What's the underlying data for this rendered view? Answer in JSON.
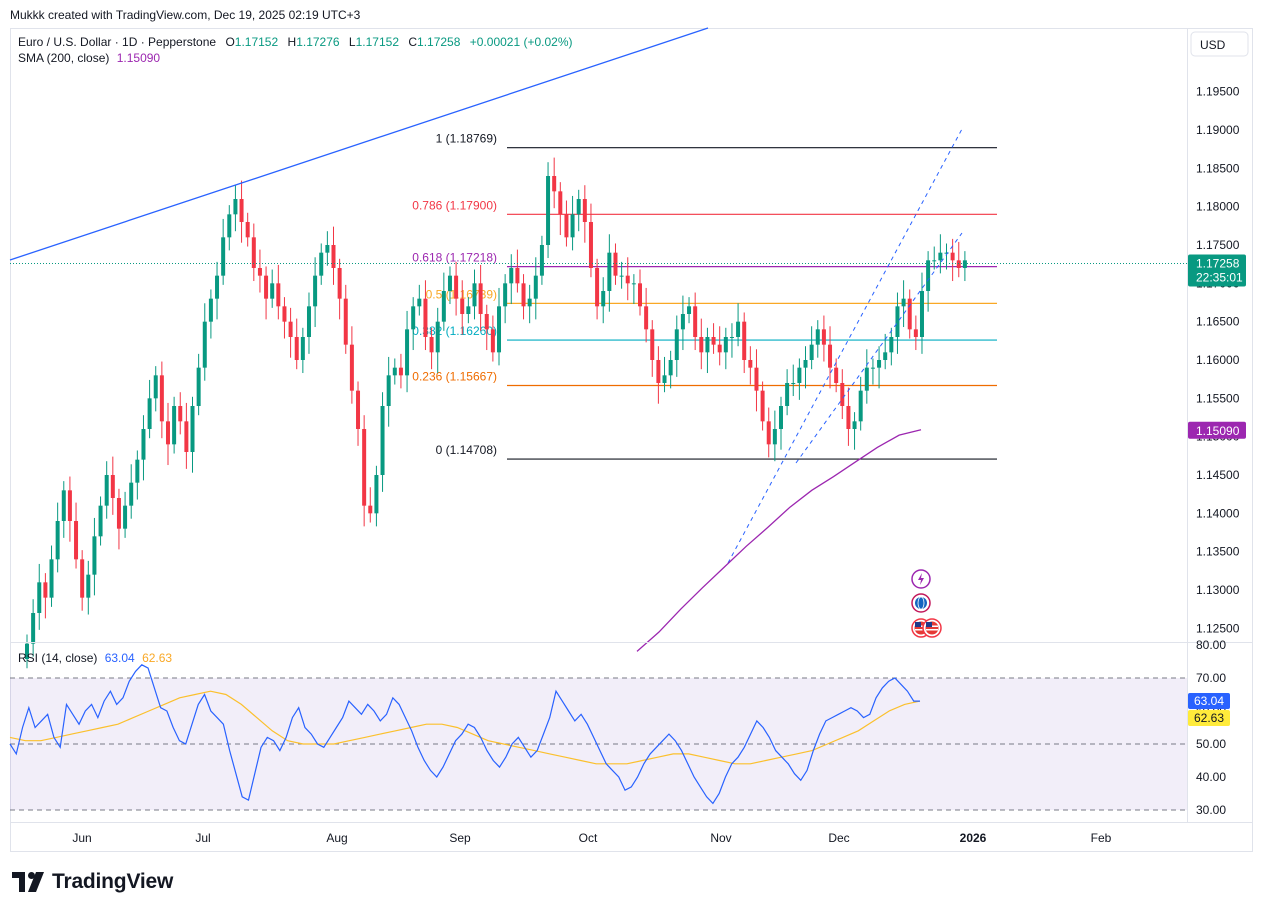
{
  "attribution": "Mukkk created with TradingView.com, Dec 19, 2025 02:19 UTC+3",
  "brand": {
    "name": "TradingView",
    "icon": "tradingview-logo-icon"
  },
  "legend": {
    "symbol": "Euro / U.S. Dollar · 1D · Pepperstone",
    "o_label": "O",
    "o_value": "1.17152",
    "h_label": "H",
    "h_value": "1.17276",
    "l_label": "L",
    "l_value": "1.17152",
    "c_label": "C",
    "c_value": "1.17258",
    "change": "+0.00021 (+0.02%)",
    "sma_label": "SMA (200, close)",
    "sma_value": "1.15090",
    "rsi_label": "RSI (14, close)",
    "rsi_value": "63.04",
    "rsi_ma_value": "62.63"
  },
  "currency_button": "USD",
  "colors": {
    "up": "#089981",
    "down": "#f23645",
    "sma": "#9c27b0",
    "trend": "#2962ff",
    "rsi": "#2962ff",
    "rsi_ma": "#fbc02d",
    "rsi_band": "#7e57c2"
  },
  "chart_data": [
    {
      "type": "candlestick",
      "title": "Euro / U.S. Dollar · 1D · Pepperstone",
      "x_labels": [
        "Jun",
        "Jul",
        "Aug",
        "Sep",
        "Oct",
        "Nov",
        "Dec",
        "2026",
        "Feb"
      ],
      "y_ticks": [
        "1.19500",
        "1.19000",
        "1.18500",
        "1.18000",
        "1.17500",
        "1.17000",
        "1.16500",
        "1.16000",
        "1.15500",
        "1.15000",
        "1.14500",
        "1.14000",
        "1.13500",
        "1.13000",
        "1.12500"
      ],
      "ylim": [
        1.1225,
        1.1985
      ],
      "price_now": "1.17258",
      "countdown": "22:35:01",
      "sma_now": "1.15090",
      "candles_close": [
        1.123,
        1.127,
        1.131,
        1.129,
        1.134,
        1.139,
        1.143,
        1.139,
        1.134,
        1.129,
        1.132,
        1.137,
        1.141,
        1.145,
        1.142,
        1.138,
        1.141,
        1.144,
        1.147,
        1.151,
        1.155,
        1.158,
        1.152,
        1.149,
        1.154,
        1.152,
        1.148,
        1.154,
        1.159,
        1.165,
        1.168,
        1.171,
        1.176,
        1.179,
        1.181,
        1.178,
        1.176,
        1.172,
        1.171,
        1.168,
        1.17,
        1.167,
        1.165,
        1.163,
        1.16,
        1.163,
        1.167,
        1.171,
        1.174,
        1.175,
        1.172,
        1.168,
        1.162,
        1.156,
        1.151,
        1.141,
        1.14,
        1.145,
        1.154,
        1.158,
        1.159,
        1.158,
        1.164,
        1.167,
        1.168,
        1.163,
        1.161,
        1.165,
        1.169,
        1.171,
        1.168,
        1.166,
        1.167,
        1.17,
        1.166,
        1.164,
        1.161,
        1.167,
        1.17,
        1.172,
        1.17,
        1.167,
        1.168,
        1.171,
        1.175,
        1.184,
        1.182,
        1.179,
        1.176,
        1.179,
        1.181,
        1.178,
        1.172,
        1.167,
        1.169,
        1.174,
        1.171,
        1.171,
        1.17,
        1.17,
        1.167,
        1.164,
        1.16,
        1.157,
        1.158,
        1.16,
        1.164,
        1.166,
        1.167,
        1.163,
        1.161,
        1.163,
        1.162,
        1.161,
        1.163,
        1.163,
        1.165,
        1.16,
        1.159,
        1.156,
        1.152,
        1.149,
        1.151,
        1.154,
        1.157,
        1.157,
        1.159,
        1.16,
        1.162,
        1.164,
        1.162,
        1.159,
        1.157,
        1.154,
        1.151,
        1.152,
        1.156,
        1.159,
        1.159,
        1.16,
        1.161,
        1.163,
        1.167,
        1.168,
        1.164,
        1.163,
        1.169,
        1.173,
        1.173,
        1.174,
        1.174,
        1.173,
        1.172,
        1.173
      ],
      "sma_values": [
        1.122,
        1.1245,
        1.1275,
        1.1303,
        1.133,
        1.1357,
        1.1382,
        1.1408,
        1.143,
        1.1448,
        1.1467,
        1.1486,
        1.1502,
        1.1509
      ],
      "rsi_ticks": [
        "80.00",
        "70.00",
        "60.00",
        "50.00",
        "40.00",
        "30.00"
      ],
      "rsi_levels": {
        "upper": 70,
        "middle": 50,
        "lower": 30
      },
      "rsi_values": [
        50,
        47,
        55,
        61,
        55,
        57,
        59,
        52,
        49,
        62,
        59,
        56,
        60,
        62,
        58,
        63,
        66,
        62,
        64,
        69,
        72,
        74,
        73,
        67,
        61,
        60,
        55,
        51,
        50,
        56,
        62,
        65,
        60,
        58,
        56,
        48,
        41,
        34,
        33,
        41,
        49,
        52,
        51,
        48,
        52,
        58,
        61,
        55,
        53,
        50,
        49,
        52,
        55,
        58,
        63,
        61,
        59,
        62,
        60,
        57,
        59,
        64,
        62,
        58,
        54,
        49,
        45,
        42,
        40,
        43,
        47,
        51,
        53,
        56,
        55,
        52,
        48,
        45,
        43,
        46,
        50,
        52,
        49,
        46,
        48,
        53,
        58,
        66,
        63,
        60,
        57,
        59,
        56,
        52,
        48,
        44,
        42,
        40,
        36,
        37,
        40,
        44,
        47,
        49,
        51,
        53,
        51,
        48,
        44,
        40,
        37,
        34,
        32,
        35,
        40,
        44,
        46,
        49,
        53,
        57,
        55,
        52,
        48,
        46,
        44,
        41,
        39,
        42,
        48,
        53,
        57,
        58,
        59,
        60,
        61,
        60,
        58,
        59,
        64,
        67,
        69,
        70,
        68,
        66,
        63,
        63
      ],
      "rsi_ma_values": [
        52,
        51,
        51,
        52,
        53,
        54,
        55,
        56,
        58,
        60,
        62,
        64,
        65,
        66,
        65,
        62,
        58,
        54,
        51,
        50,
        50,
        50,
        51,
        52,
        53,
        54,
        55,
        56,
        56,
        55,
        53,
        51,
        50,
        49,
        48,
        47,
        46,
        45,
        44,
        44,
        44,
        45,
        46,
        47,
        47,
        46,
        45,
        44,
        44,
        45,
        46,
        47,
        48,
        50,
        52,
        54,
        57,
        60,
        62,
        63
      ],
      "rsi_now": "63.04",
      "rsi_ma_now": "62.63"
    }
  ],
  "fib_levels": [
    {
      "label": "1 (1.18769)",
      "price": 1.18769,
      "color": "#131722"
    },
    {
      "label": "0.786 (1.17900)",
      "price": 1.179,
      "color": "#f23645"
    },
    {
      "label": "0.618 (1.17218)",
      "price": 1.17218,
      "color": "#9c27b0"
    },
    {
      "label": "0.5 (1.16739)",
      "price": 1.16739,
      "color": "#f9a825"
    },
    {
      "label": "0.382 (1.16260)",
      "price": 1.1626,
      "color": "#00acc1"
    },
    {
      "label": "0.236 (1.15667)",
      "price": 1.15667,
      "color": "#ef6c00"
    },
    {
      "label": "0 (1.14708)",
      "price": 1.14708,
      "color": "#131722"
    }
  ],
  "event_icons": [
    "lightning-event-icon",
    "globe-event-icon",
    "us-flag-event-icon",
    "us-flag-event-icon"
  ]
}
